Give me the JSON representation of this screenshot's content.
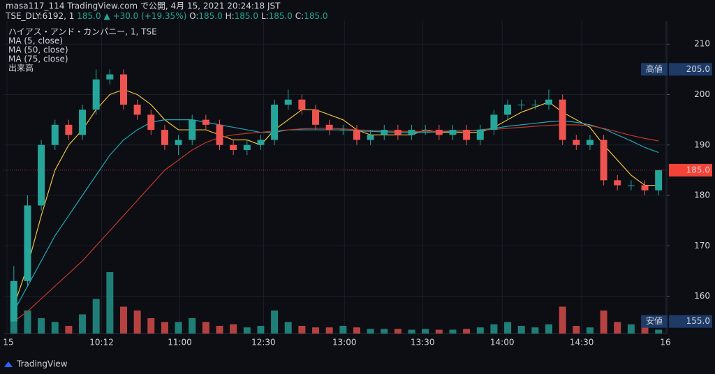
{
  "header": {
    "line1": "masa117_114 TradingView.com で公開, 4月 15, 2021 20:24:18 JST",
    "symbol": "TSE_DLY:6192, 1",
    "price": "185.0",
    "change": "▲ +30.0 (+19.35%)",
    "o_label": "O:",
    "o": "185.0",
    "h_label": "H:",
    "h": "185.0",
    "l_label": "L:",
    "l": "185.0",
    "c_label": "C:",
    "c": "185.0"
  },
  "legend": {
    "name": "ハイアス・アンド・カンパニー, 1, TSE",
    "volume_label": "出来高"
  },
  "footer": {
    "brand": "TradingView"
  },
  "chart_data": {
    "type": "candlestick",
    "up_color": "#26a69a",
    "down_color": "#ef5350",
    "grid": true,
    "xlim": [
      0,
      48
    ],
    "ylim": [
      152.6,
      214.6
    ],
    "yticks": [
      160,
      170,
      180,
      190,
      200,
      210
    ],
    "xticks": [
      {
        "value": 0,
        "label": "15"
      },
      {
        "value": 6.9,
        "label": "10:12"
      },
      {
        "value": 12.6,
        "label": "11:00"
      },
      {
        "value": 18.7,
        "label": "12:30"
      },
      {
        "value": 24.6,
        "label": "13:00"
      },
      {
        "value": 30.3,
        "label": "13:30"
      },
      {
        "value": 36.1,
        "label": "14:00"
      },
      {
        "value": 41.9,
        "label": "14:30"
      },
      {
        "value": 48,
        "label": "16"
      }
    ],
    "open": [
      155,
      163,
      178,
      190,
      194,
      192,
      197,
      203,
      204,
      198,
      196,
      193,
      190,
      191,
      195,
      194,
      190,
      189,
      190,
      191,
      198,
      199,
      197,
      194,
      193,
      193,
      191,
      192,
      193,
      192,
      193,
      193,
      192,
      193,
      191,
      193,
      196,
      198,
      198,
      198,
      199,
      191,
      190,
      191,
      183,
      182,
      182,
      181
    ],
    "high": [
      166,
      180,
      191,
      195,
      195,
      198,
      205,
      205,
      205,
      199,
      197,
      194,
      192,
      196,
      196,
      195,
      191,
      191,
      192,
      199,
      201,
      200,
      198,
      195,
      194,
      194,
      193,
      194,
      194,
      194,
      194,
      194,
      194,
      194,
      194,
      197,
      199,
      199,
      199,
      201,
      200,
      192,
      192,
      192,
      184,
      183,
      183,
      185
    ],
    "low": [
      155,
      162,
      177,
      189,
      191,
      191,
      196,
      202,
      197,
      195,
      192,
      189,
      188,
      190,
      193,
      189,
      188,
      188,
      189,
      190,
      197,
      196,
      193,
      192,
      192,
      190,
      190,
      191,
      191,
      191,
      192,
      191,
      191,
      190,
      190,
      192,
      195,
      197,
      197,
      197,
      190,
      189,
      189,
      182,
      181,
      181,
      180,
      180
    ],
    "close": [
      163,
      178,
      190,
      194,
      192,
      197,
      203,
      204,
      198,
      196,
      193,
      190,
      191,
      195,
      194,
      190,
      189,
      190,
      191,
      198,
      199,
      197,
      194,
      193,
      193,
      191,
      192,
      193,
      192,
      193,
      193,
      192,
      193,
      191,
      193,
      196,
      198,
      198,
      198,
      199,
      191,
      190,
      191,
      183,
      182,
      182,
      181,
      185
    ],
    "volume": {
      "name": "出来高",
      "ylim": [
        0,
        100
      ],
      "values": [
        40,
        30,
        20,
        15,
        10,
        25,
        45,
        80,
        35,
        30,
        20,
        15,
        15,
        20,
        15,
        10,
        12,
        8,
        10,
        30,
        15,
        10,
        8,
        8,
        10,
        8,
        6,
        6,
        6,
        5,
        6,
        5,
        5,
        6,
        8,
        12,
        15,
        10,
        8,
        12,
        35,
        10,
        8,
        30,
        15,
        12,
        10,
        5
      ]
    },
    "series": [
      {
        "name": "MA (5, close)",
        "color": "#f0c23b",
        "values": [
          158,
          166,
          176,
          185,
          190,
          193,
          197,
          200,
          201,
          200,
          198,
          195,
          193,
          193,
          193,
          192,
          191,
          191,
          190,
          193,
          195,
          197,
          197,
          196,
          195,
          193,
          192,
          192,
          192,
          192,
          193,
          192.5,
          192.5,
          192.5,
          192.5,
          193.5,
          195,
          196.5,
          197.5,
          198.5,
          196.5,
          195,
          193.5,
          190,
          187,
          184,
          182,
          182
        ]
      },
      {
        "name": "MA (50, close)",
        "color": "#1fa9b8",
        "values": [
          157,
          162,
          167,
          172,
          176,
          180,
          184,
          188,
          191,
          193,
          194.5,
          195,
          195,
          195,
          194.5,
          194,
          193.5,
          193,
          192.5,
          192.5,
          193,
          193,
          193,
          193,
          193,
          192.8,
          192.7,
          192.6,
          192.5,
          192.5,
          192.5,
          192.6,
          192.7,
          192.8,
          193,
          193.3,
          193.7,
          194,
          194.3,
          194.6,
          194.8,
          194.5,
          194,
          193.2,
          192,
          190.8,
          189.5,
          188.5
        ]
      },
      {
        "name": "MA (75, close)",
        "color": "#c0392b",
        "values": [
          155,
          157,
          159.5,
          162,
          164.5,
          167,
          170,
          173,
          176,
          179,
          182,
          185,
          187,
          189,
          190.5,
          191.5,
          192,
          192.3,
          192.5,
          192.8,
          193,
          193.2,
          193.3,
          193.3,
          193.2,
          193,
          192.9,
          192.8,
          192.7,
          192.7,
          192.7,
          192.7,
          192.8,
          192.8,
          192.9,
          193.1,
          193.3,
          193.5,
          193.7,
          193.9,
          194,
          194,
          193.8,
          193.3,
          192.6,
          191.9,
          191.3,
          190.8
        ]
      }
    ],
    "price_lines": [
      {
        "name": "高値",
        "value": 205,
        "label": "205.0",
        "color": "#1e3a66"
      },
      {
        "name": "安値",
        "value": 155,
        "label": "155.0",
        "color": "#1e3a66"
      },
      {
        "value": 185,
        "label": "185.0",
        "color": "#f44336"
      }
    ]
  }
}
